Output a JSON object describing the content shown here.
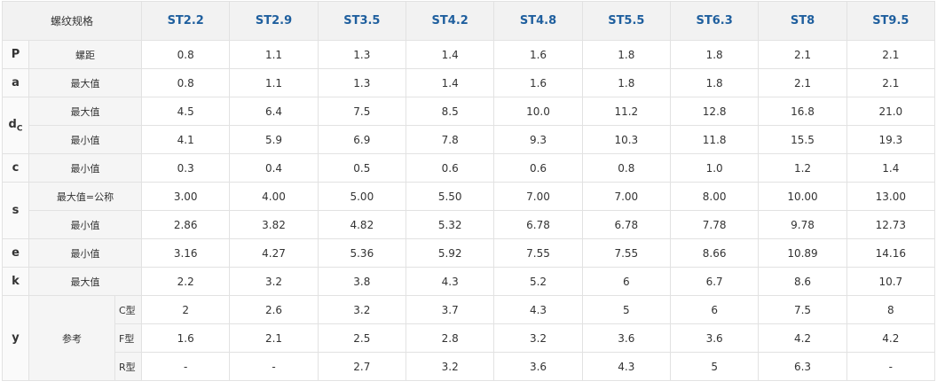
{
  "header": {
    "title": "螺纹规格",
    "columns": [
      "ST2.2",
      "ST2.9",
      "ST3.5",
      "ST4.2",
      "ST4.8",
      "ST5.5",
      "ST6.3",
      "ST8",
      "ST9.5"
    ]
  },
  "groups": [
    {
      "symbol": "P",
      "rows": [
        {
          "label": "螺距",
          "values": [
            "0.8",
            "1.1",
            "1.3",
            "1.4",
            "1.6",
            "1.8",
            "1.8",
            "2.1",
            "2.1"
          ]
        }
      ]
    },
    {
      "symbol": "a",
      "rows": [
        {
          "label": "最大值",
          "values": [
            "0.8",
            "1.1",
            "1.3",
            "1.4",
            "1.6",
            "1.8",
            "1.8",
            "2.1",
            "2.1"
          ]
        }
      ]
    },
    {
      "symbol": "d",
      "symbol_sub": "C",
      "rows": [
        {
          "label": "最大值",
          "values": [
            "4.5",
            "6.4",
            "7.5",
            "8.5",
            "10.0",
            "11.2",
            "12.8",
            "16.8",
            "21.0"
          ]
        },
        {
          "label": "最小值",
          "values": [
            "4.1",
            "5.9",
            "6.9",
            "7.8",
            "9.3",
            "10.3",
            "11.8",
            "15.5",
            "19.3"
          ]
        }
      ]
    },
    {
      "symbol": "c",
      "rows": [
        {
          "label": "最小值",
          "values": [
            "0.3",
            "0.4",
            "0.5",
            "0.6",
            "0.6",
            "0.8",
            "1.0",
            "1.2",
            "1.4"
          ]
        }
      ]
    },
    {
      "symbol": "s",
      "rows": [
        {
          "label": "最大值=公称",
          "values": [
            "3.00",
            "4.00",
            "5.00",
            "5.50",
            "7.00",
            "7.00",
            "8.00",
            "10.00",
            "13.00"
          ]
        },
        {
          "label": "最小值",
          "values": [
            "2.86",
            "3.82",
            "4.82",
            "5.32",
            "6.78",
            "6.78",
            "7.78",
            "9.78",
            "12.73"
          ]
        }
      ]
    },
    {
      "symbol": "e",
      "rows": [
        {
          "label": "最小值",
          "values": [
            "3.16",
            "4.27",
            "5.36",
            "5.92",
            "7.55",
            "7.55",
            "8.66",
            "10.89",
            "14.16"
          ]
        }
      ]
    },
    {
      "symbol": "k",
      "rows": [
        {
          "label": "最大值",
          "values": [
            "2.2",
            "3.2",
            "3.8",
            "4.3",
            "5.2",
            "6",
            "6.7",
            "8.6",
            "10.7"
          ]
        }
      ]
    },
    {
      "symbol": "y",
      "label": "参考",
      "rows": [
        {
          "sub": "C型",
          "values": [
            "2",
            "2.6",
            "3.2",
            "3.7",
            "4.3",
            "5",
            "6",
            "7.5",
            "8"
          ]
        },
        {
          "sub": "F型",
          "values": [
            "1.6",
            "2.1",
            "2.5",
            "2.8",
            "3.2",
            "3.6",
            "3.6",
            "4.2",
            "4.2"
          ]
        },
        {
          "sub": "R型",
          "values": [
            "-",
            "-",
            "2.7",
            "3.2",
            "3.6",
            "4.3",
            "5",
            "6.3",
            "-"
          ]
        }
      ]
    }
  ]
}
